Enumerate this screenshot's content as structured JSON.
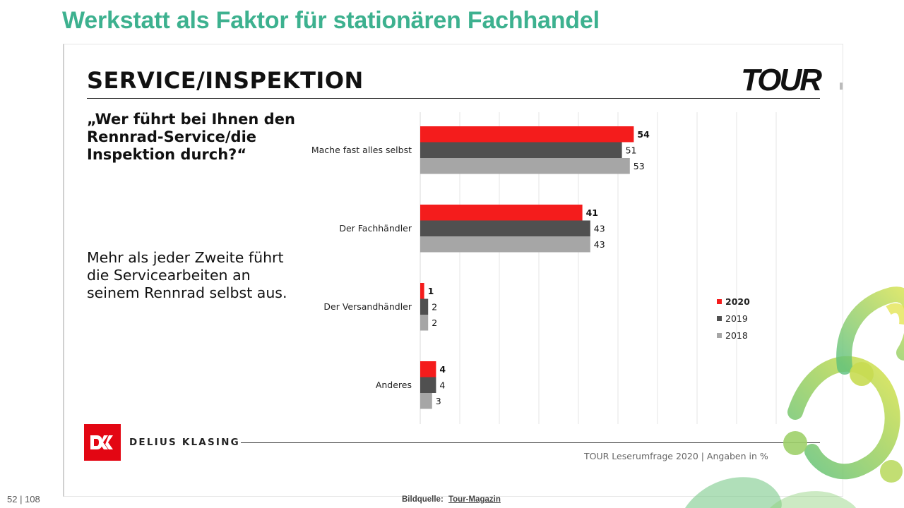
{
  "page": {
    "title": "Werkstatt als Faktor für stationären Fachhandel",
    "page_number": "52 | 108",
    "credit_label": "Bildquelle:",
    "credit_source": "Tour-Magazin"
  },
  "slide": {
    "heading": "SERVICE/INSPEKTION",
    "brand": "TOUR",
    "question": "„Wer führt bei Ihnen den Rennrad-Service/die Inspektion durch?“",
    "summary": "Mehr als jeder Zweite führt die Servicearbeiten an seinem Rennrad selbst aus.",
    "publisher": "DELIUS KLASING",
    "source_note": "TOUR Leserumfrage 2020 | Angaben in %"
  },
  "colors": {
    "title_green": "#3db18f",
    "series_2020": "#f41c1c",
    "series_2019": "#505050",
    "series_2018": "#a6a6a6",
    "publisher_red": "#e30613"
  },
  "chart_data": {
    "type": "bar",
    "orientation": "horizontal",
    "categories": [
      "Mache fast alles selbst",
      "Der Fachhändler",
      "Der Versandhändler",
      "Anderes"
    ],
    "series": [
      {
        "name": "2020",
        "values": [
          54,
          41,
          1,
          4
        ],
        "color": "#f41c1c",
        "bold": true
      },
      {
        "name": "2019",
        "values": [
          51,
          43,
          2,
          4
        ],
        "color": "#505050",
        "bold": false
      },
      {
        "name": "2018",
        "values": [
          53,
          43,
          2,
          3
        ],
        "color": "#a6a6a6",
        "bold": false
      }
    ],
    "xlim": [
      0,
      90
    ],
    "grid": true,
    "legend": "right",
    "unit": "%"
  }
}
